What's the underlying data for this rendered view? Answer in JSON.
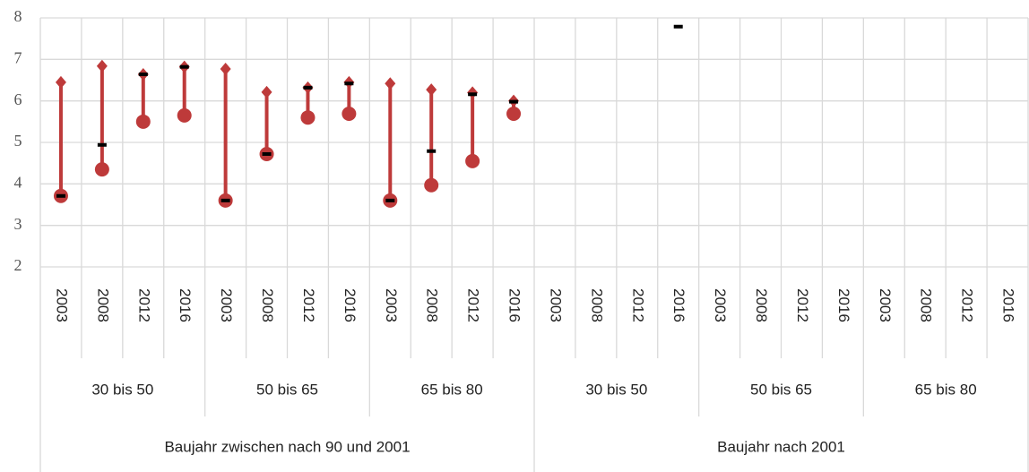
{
  "chart_data": {
    "type": "high-low-close",
    "categories": [
      "2003",
      "2008",
      "2012",
      "2016",
      "2003",
      "2008",
      "2012",
      "2016",
      "2003",
      "2008",
      "2012",
      "2016",
      "2003",
      "2008",
      "2012",
      "2016",
      "2003",
      "2008",
      "2012",
      "2016",
      "2003",
      "2008",
      "2012",
      "2016"
    ],
    "groups": [
      {
        "label": "30 bis 50",
        "count": 4
      },
      {
        "label": "50 bis 65",
        "count": 4
      },
      {
        "label": "65 bis 80",
        "count": 4
      },
      {
        "label": "30 bis 50",
        "count": 4
      },
      {
        "label": "50 bis 65",
        "count": 4
      },
      {
        "label": "65 bis 80",
        "count": 4
      }
    ],
    "supergroups": [
      {
        "label": "Baujahr zwischen nach 90 und 2001",
        "count": 12
      },
      {
        "label": "Baujahr nach 2001",
        "count": 12
      }
    ],
    "series": [
      {
        "marker": "diamond",
        "color": "#be3a3a",
        "values": [
          6.45,
          6.84,
          6.64,
          6.82,
          6.77,
          6.21,
          6.32,
          6.45,
          6.42,
          6.27,
          6.2,
          6.0,
          null,
          null,
          null,
          null,
          null,
          null,
          null,
          null,
          null,
          null,
          null,
          null
        ]
      },
      {
        "marker": "circle",
        "color": "#be3a3a",
        "values": [
          3.71,
          4.35,
          5.5,
          5.65,
          3.6,
          4.72,
          5.6,
          5.69,
          3.6,
          3.97,
          4.55,
          5.69,
          null,
          null,
          null,
          null,
          null,
          null,
          null,
          null,
          null,
          null,
          null,
          null
        ]
      },
      {
        "marker": "dash",
        "color": "#000000",
        "values": [
          3.71,
          4.94,
          6.64,
          6.82,
          3.6,
          4.72,
          6.32,
          6.42,
          3.6,
          4.79,
          6.16,
          5.98,
          null,
          null,
          null,
          7.79,
          null,
          null,
          null,
          null,
          null,
          null,
          null,
          null
        ]
      }
    ],
    "ylim": [
      2,
      8
    ],
    "yticks": [
      2,
      3,
      4,
      5,
      6,
      7,
      8
    ],
    "grid": true
  }
}
